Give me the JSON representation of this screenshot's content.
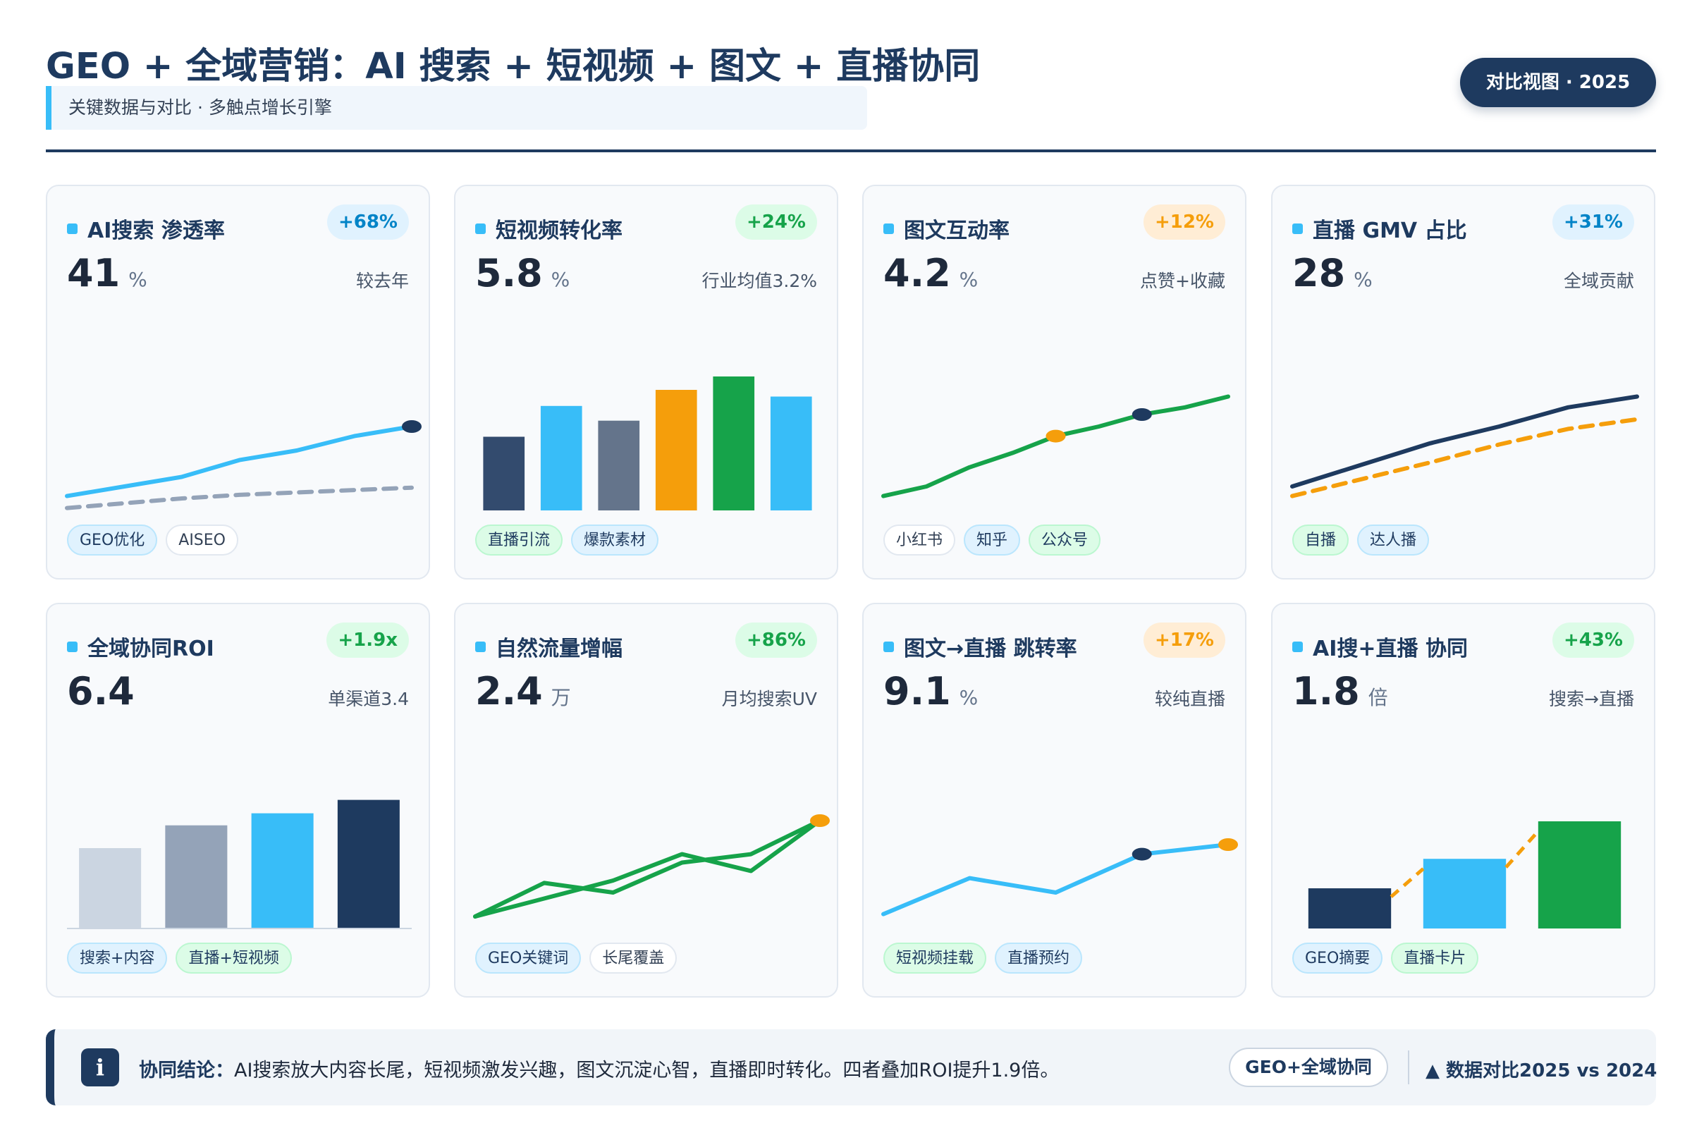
{
  "header": {
    "title": "GEO + 全域营销：AI 搜索 + 短视频 + 图文 + 直播协同",
    "subtitle": "关键数据与对比 · 多触点增长引擎",
    "badge": "对比视图 · 2025"
  },
  "colors": {
    "navy": "#1e3a5f",
    "sky": "#38bdf8",
    "green": "#16a34a",
    "orange": "#f59e0b",
    "slate": "#64748b",
    "gray": "#94a3b8",
    "light_gray": "#cbd5e1"
  },
  "cards": [
    {
      "title": "AI搜索 渗透率",
      "delta": "+68%",
      "delta_tone": "blue",
      "value": "41",
      "unit": "%",
      "note": "较去年",
      "tags": [
        {
          "label": "GEO优化",
          "tone": "blue"
        },
        {
          "label": "AISEO",
          "tone": "gray"
        }
      ]
    },
    {
      "title": "短视频转化率",
      "delta": "+24%",
      "delta_tone": "green",
      "value": "5.8",
      "unit": "%",
      "note": "行业均值3.2%",
      "tags": [
        {
          "label": "直播引流",
          "tone": "green"
        },
        {
          "label": "爆款素材",
          "tone": "blue"
        }
      ]
    },
    {
      "title": "图文互动率",
      "delta": "+12%",
      "delta_tone": "orange",
      "value": "4.2",
      "unit": "%",
      "note": "点赞+收藏",
      "tags": [
        {
          "label": "小红书",
          "tone": "gray"
        },
        {
          "label": "知乎",
          "tone": "blue"
        },
        {
          "label": "公众号",
          "tone": "green"
        }
      ]
    },
    {
      "title": "直播 GMV 占比",
      "delta": "+31%",
      "delta_tone": "blue",
      "value": "28",
      "unit": "%",
      "note": "全域贡献",
      "tags": [
        {
          "label": "自播",
          "tone": "green"
        },
        {
          "label": "达人播",
          "tone": "blue"
        }
      ]
    },
    {
      "title": "全域协同ROI",
      "delta": "+1.9x",
      "delta_tone": "green",
      "value": "6.4",
      "unit": "",
      "note": "单渠道3.4",
      "tags": [
        {
          "label": "搜索+内容",
          "tone": "blue"
        },
        {
          "label": "直播+短视频",
          "tone": "green"
        }
      ]
    },
    {
      "title": "自然流量增幅",
      "delta": "+86%",
      "delta_tone": "green",
      "value": "2.4",
      "unit": "万",
      "note": "月均搜索UV",
      "tags": [
        {
          "label": "GEO关键词",
          "tone": "blue"
        },
        {
          "label": "长尾覆盖",
          "tone": "gray"
        }
      ]
    },
    {
      "title": "图文→直播 跳转率",
      "delta": "+17%",
      "delta_tone": "orange",
      "value": "9.1",
      "unit": "%",
      "note": "较纯直播",
      "tags": [
        {
          "label": "短视频挂载",
          "tone": "green"
        },
        {
          "label": "直播预约",
          "tone": "blue"
        }
      ]
    },
    {
      "title": "AI搜+直播 协同",
      "delta": "+43%",
      "delta_tone": "green",
      "value": "1.8",
      "unit": "倍",
      "note": "搜索→直播",
      "tags": [
        {
          "label": "GEO摘要",
          "tone": "blue"
        },
        {
          "label": "直播卡片",
          "tone": "green"
        }
      ]
    }
  ],
  "chart_data": [
    {
      "type": "line",
      "series": [
        {
          "values": [
            0.12,
            0.2,
            0.28,
            0.42,
            0.5,
            0.62,
            0.7
          ],
          "color": "#38bdf8",
          "style": "solid",
          "end_marker": "#1e3a5f"
        },
        {
          "values": [
            0.02,
            0.06,
            0.1,
            0.13,
            0.15,
            0.17,
            0.19
          ],
          "color": "#94a3b8",
          "style": "dashed"
        }
      ]
    },
    {
      "type": "bar",
      "values": [
        0.55,
        0.78,
        0.67,
        0.9,
        1.0,
        0.85
      ],
      "colors": [
        "#334b6e",
        "#38bdf8",
        "#64748b",
        "#f59e0b",
        "#16a34a",
        "#38bdf8"
      ]
    },
    {
      "type": "line",
      "series": [
        {
          "values": [
            0.12,
            0.2,
            0.36,
            0.48,
            0.62,
            0.7,
            0.8,
            0.86,
            0.95
          ],
          "color": "#16a34a",
          "style": "solid",
          "markers": [
            {
              "index": 4,
              "color": "#f59e0b"
            },
            {
              "index": 6,
              "color": "#1e3a5f"
            }
          ]
        }
      ]
    },
    {
      "type": "line",
      "series": [
        {
          "values": [
            0.2,
            0.38,
            0.56,
            0.7,
            0.86,
            0.95
          ],
          "color": "#1e3a5f",
          "style": "solid"
        },
        {
          "values": [
            0.12,
            0.26,
            0.4,
            0.55,
            0.68,
            0.76
          ],
          "color": "#f59e0b",
          "style": "dashed"
        }
      ]
    },
    {
      "type": "bar",
      "values": [
        0.6,
        0.77,
        0.86,
        0.96
      ],
      "colors": [
        "#cbd5e1",
        "#94a3b8",
        "#38bdf8",
        "#1e3a5f"
      ],
      "baseline": true
    },
    {
      "type": "line",
      "series": [
        {
          "values": [
            0.1,
            0.38,
            0.3,
            0.55,
            0.62,
            0.9
          ],
          "color": "#16a34a",
          "style": "solid"
        },
        {
          "values": [
            0.1,
            0.25,
            0.4,
            0.62,
            0.48,
            0.9
          ],
          "color": "#16a34a",
          "style": "solid",
          "end_marker": "#f59e0b"
        }
      ]
    },
    {
      "type": "line",
      "series": [
        {
          "values": [
            0.12,
            0.42,
            0.3,
            0.62,
            0.7
          ],
          "color": "#38bdf8",
          "style": "solid",
          "markers": [
            {
              "index": 3,
              "color": "#1e3a5f"
            },
            {
              "index": 4,
              "color": "#f59e0b"
            }
          ]
        }
      ]
    },
    {
      "type": "bar",
      "values": [
        0.3,
        0.52,
        0.8
      ],
      "colors": [
        "#1e3a5f",
        "#38bdf8",
        "#16a34a"
      ],
      "connector": {
        "color": "#f59e0b",
        "style": "dashed"
      }
    }
  ],
  "footer": {
    "info_glyph": "i",
    "conclusion_label": "协同结论：",
    "conclusion_text": "AI搜索放大内容长尾，短视频激发兴趣，图文沉淀心智，直播即时转化。四者叠加ROI提升1.9倍。",
    "button_label": "GEO+全域协同",
    "comparison_label": "▲ 数据对比2025 vs 2024"
  }
}
